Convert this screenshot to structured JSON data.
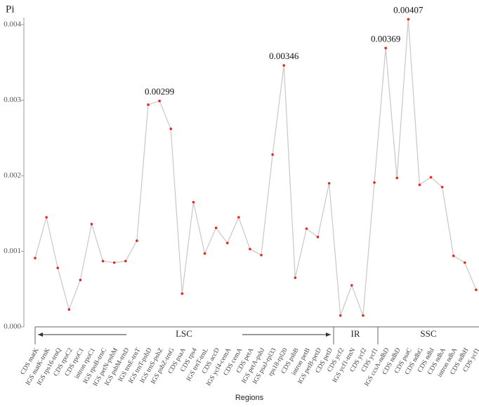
{
  "chart_data": {
    "type": "line",
    "y_label": "Pi",
    "x_label": "Regions",
    "categories": [
      "CDS matK",
      "IGS matK-trnK",
      "IGS rps16-trnQ",
      "CDS rpoC2",
      "CDS rpoC1",
      "intron rpoC1",
      "IGS rpoB-trnC",
      "IGS petN-psbM",
      "IGS psbM-trnD",
      "IGS trnE-trnT",
      "IGS trnT-psbD",
      "IGS trnS-psbZ",
      "IGS psbZ-trnG",
      "CDS psaA",
      "CDS rps4",
      "IGS trnT-trnL",
      "CDS accD",
      "IGS ycf4-cemA",
      "CDS cemA",
      "CDS petA",
      "IGS petA-psbJ",
      "IGS psaJ-rpl33",
      "rps18-rpl20",
      "CDS psbB",
      "intron petB",
      "IGS petB-petD",
      "CDS petD",
      "CDS ycf2",
      "IGS ycf1-trnN",
      "CDS ycf2",
      "CDS ycf1",
      "IGS ccsA-ndhD",
      "CDS ndhD",
      "CDS psaC",
      "CDS ndhG",
      "CDS ndhI",
      "CDS ndhA",
      "intron ndhA",
      "CDS ndhH",
      "CDS ycf1"
    ],
    "series": [
      {
        "name": "Pi",
        "color": "#c8c8c8",
        "marker_color": "#e8261e",
        "values": [
          0.00091,
          0.00145,
          0.00078,
          0.00023,
          0.00062,
          0.00136,
          0.00087,
          0.00085,
          0.00087,
          0.00114,
          0.00294,
          0.00299,
          0.00262,
          0.00044,
          0.00165,
          0.00097,
          0.00131,
          0.00111,
          0.00145,
          0.00103,
          0.00095,
          0.00228,
          0.00346,
          0.00065,
          0.0013,
          0.00119,
          0.0019,
          0.00015,
          0.00055,
          0.00015,
          0.00191,
          0.00369,
          0.00197,
          0.00407,
          0.00188,
          0.00198,
          0.00185,
          0.00094,
          0.00085,
          0.00049
        ],
        "value_labels": [
          null,
          null,
          null,
          null,
          null,
          null,
          null,
          null,
          null,
          null,
          null,
          "0.00299",
          null,
          null,
          null,
          null,
          null,
          null,
          null,
          null,
          null,
          null,
          "0.00346",
          null,
          null,
          null,
          null,
          null,
          null,
          null,
          null,
          "0.00369",
          null,
          "0.00407",
          null,
          null,
          null,
          null,
          null,
          null
        ]
      }
    ],
    "ylim": [
      0,
      0.004
    ],
    "yticks": [
      {
        "value": 0,
        "label": "0.000"
      },
      {
        "value": 0.001,
        "label": "0.001"
      },
      {
        "value": 0.002,
        "label": "0.002"
      },
      {
        "value": 0.003,
        "label": "0.003"
      },
      {
        "value": 0.004,
        "label": "0.004"
      }
    ],
    "regions": [
      "LSC",
      "IR",
      "SSC"
    ],
    "grid": false
  }
}
